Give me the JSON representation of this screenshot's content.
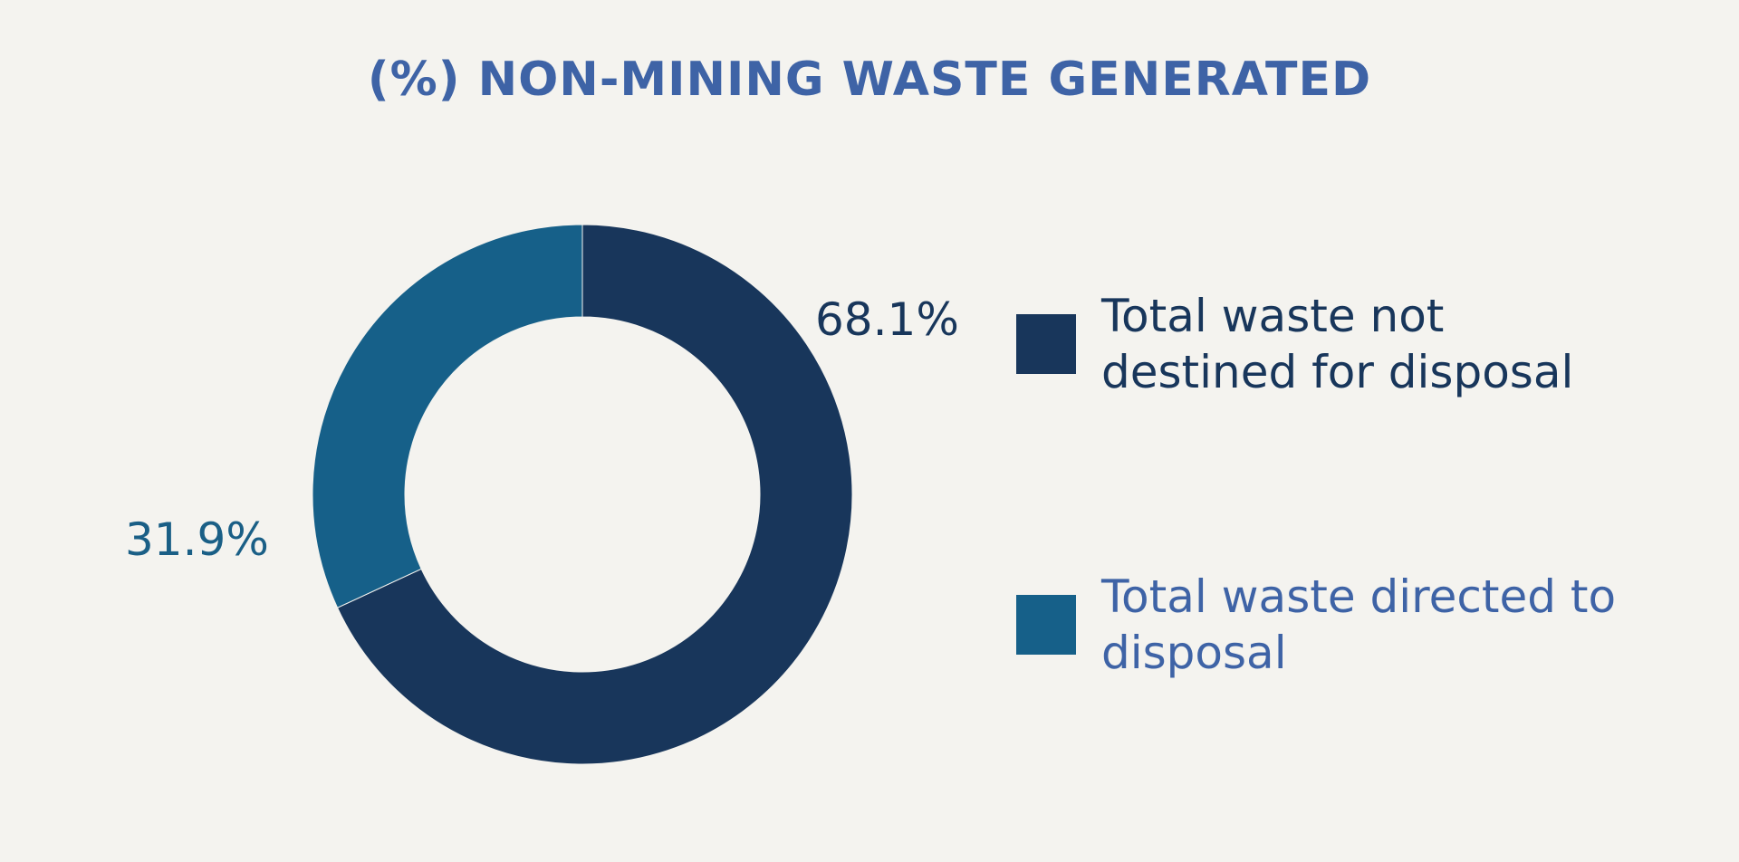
{
  "chart_data": {
    "type": "pie",
    "variant": "donut",
    "title": "(%) NON-MINING WASTE GENERATED",
    "series": [
      {
        "name": "Total waste not destined for disposal",
        "value": 68.1,
        "label": "68.1%",
        "color": "#18365b",
        "label_color": "#18365b",
        "legend_text_color": "#18365b"
      },
      {
        "name": "Total waste directed to disposal",
        "value": 31.9,
        "label": "31.9%",
        "color": "#166089",
        "label_color": "#1a5f86",
        "legend_text_color": "#3e63a6"
      }
    ],
    "legend_position": "right"
  },
  "colors": {
    "background": "#f4f3ef",
    "title": "#3e63a6"
  }
}
